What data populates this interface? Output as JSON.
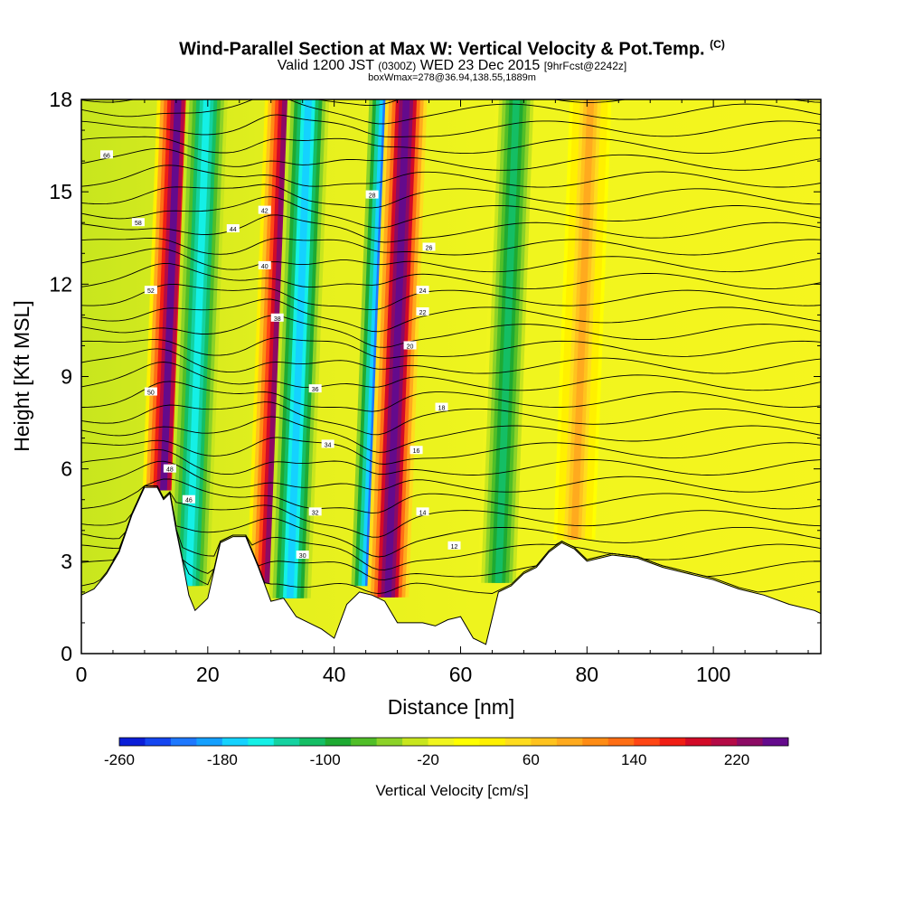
{
  "chart_data": {
    "type": "heatmap",
    "title": "Wind-Parallel Section at Max W: Vertical Velocity & Pot.Temp.",
    "title_mark": "(C)",
    "subtitle_parts": [
      "Valid 1200 JST",
      "(0300Z)",
      "WED 23 Dec 2015",
      "[9hrFcst@2242z]"
    ],
    "subtitle2": "boxWmax=278@36.94,138.55,1889m",
    "xlabel": "Distance [nm]",
    "ylabel": "Height [Kft MSL]",
    "xlim": [
      0,
      117
    ],
    "ylim": [
      0,
      18
    ],
    "x_ticks": [
      0,
      20,
      40,
      60,
      80,
      100
    ],
    "y_ticks": [
      0,
      3,
      6,
      9,
      12,
      15,
      18
    ],
    "colorbar": {
      "label": "Vertical Velocity [cm/s]",
      "range": [
        -260,
        260
      ],
      "tick_values": [
        -260,
        -180,
        -100,
        -20,
        60,
        140,
        220
      ],
      "colors": [
        "#0a1ed8",
        "#1446f0",
        "#1e78ff",
        "#14a0ff",
        "#14d2ff",
        "#14f0e6",
        "#14d2a0",
        "#14be64",
        "#1eaa32",
        "#50be28",
        "#8cd228",
        "#c8e61e",
        "#f0f51e",
        "#ffff00",
        "#fff000",
        "#ffdc1e",
        "#ffc31e",
        "#ffaa1e",
        "#ff8c14",
        "#ff6e14",
        "#ff4614",
        "#f01e14",
        "#d20a28",
        "#b40a46",
        "#8c0a64",
        "#640a8c"
      ]
    },
    "terrain_profile": {
      "x": [
        0,
        2,
        4,
        6,
        8,
        10,
        12,
        13,
        14,
        15,
        16,
        17,
        18,
        20,
        22,
        24,
        26,
        28,
        30,
        32,
        34,
        36,
        38,
        40,
        42,
        44,
        46,
        48,
        50,
        52,
        54,
        56,
        58,
        60,
        62,
        64,
        66,
        68,
        70,
        72,
        74,
        76,
        78,
        80,
        84,
        88,
        92,
        96,
        100,
        104,
        108,
        112,
        116,
        117
      ],
      "height": [
        1.9,
        2.1,
        2.6,
        3.3,
        4.5,
        5.4,
        5.4,
        5.0,
        5.2,
        4.0,
        3.0,
        1.9,
        1.4,
        1.8,
        3.6,
        3.8,
        3.8,
        2.8,
        1.7,
        1.8,
        1.2,
        1.0,
        0.8,
        0.5,
        1.6,
        2.0,
        1.9,
        1.7,
        1.0,
        1.0,
        1.0,
        0.9,
        1.1,
        1.2,
        0.5,
        0.3,
        2.0,
        2.2,
        2.6,
        2.8,
        3.3,
        3.6,
        3.4,
        3.0,
        3.2,
        3.1,
        2.8,
        2.6,
        2.4,
        2.1,
        1.9,
        1.6,
        1.4,
        1.3
      ]
    },
    "isentrope_labels": [
      "66",
      "58",
      "52",
      "50",
      "48",
      "46",
      "44",
      "42",
      "40",
      "38",
      "36",
      "34",
      "32",
      "30",
      "28",
      "26",
      "24",
      "22",
      "20",
      "18",
      "16",
      "14",
      "12"
    ],
    "velocity_bands": [
      {
        "x": 13,
        "w_max": 240,
        "kind": "updraft"
      },
      {
        "x": 17,
        "w_min": -160,
        "kind": "downdraft"
      },
      {
        "x": 29.5,
        "w_max": 230,
        "kind": "updraft"
      },
      {
        "x": 33,
        "w_min": -170,
        "kind": "downdraft"
      },
      {
        "x": 46,
        "w_min": -260,
        "kind": "downdraft"
      },
      {
        "x": 48.5,
        "w_max": 278,
        "kind": "updraft"
      },
      {
        "x": 66,
        "w_min": -120,
        "kind": "downdraft"
      },
      {
        "x": 78,
        "w_max": 80,
        "kind": "updraft"
      }
    ]
  }
}
